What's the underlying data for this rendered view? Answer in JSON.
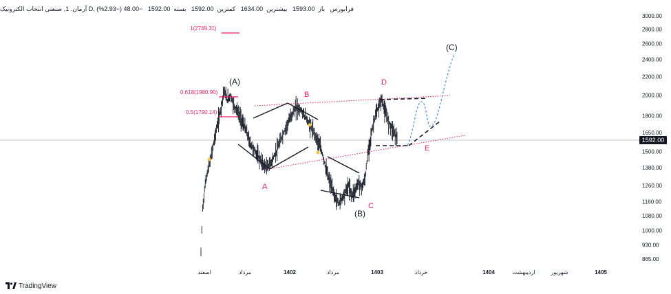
{
  "header": {
    "title": "آرمان. 1, صنعتی انتخاب الکترونیک D, فرابورس",
    "open_label": "باز",
    "open": "1593.00",
    "high_label": "بیشترین",
    "high": "1634.00",
    "low_label": "کمترین",
    "low": "1592.00",
    "close_label": "بسته",
    "close": "1592.00",
    "change": "−48.00 (−2.93%)"
  },
  "brand": {
    "name": "TradingView"
  },
  "current_price": "1592.00",
  "colors": {
    "candle": "#131722",
    "annotation_pink": "#e91e63",
    "dotted_channel": "#e91e63",
    "projection_blue": "#4a8fe7",
    "dashed_black": "#131722",
    "marker_yellow": "#f5c242",
    "grid_line": "#b2b5be"
  },
  "chart_data": {
    "type": "line",
    "title": "",
    "xlabel": "",
    "ylabel": "",
    "y_scale": "log",
    "ylim": [
      865,
      3000
    ],
    "y_ticks": [
      3000,
      2800,
      2600,
      2400,
      2200,
      2000,
      1800,
      1650,
      1500,
      1380,
      1260,
      1160,
      1080,
      1000,
      930,
      865
    ],
    "y_tick_labels": [
      "3000.00",
      "2800.00",
      "2600.00",
      "2400.00",
      "2200.00",
      "2000.00",
      "1800.00",
      "1650.00",
      "1500.00",
      "1380.00",
      "1260.00",
      "1160.00",
      "1080.00",
      "1000.00",
      "930.00",
      "865.00"
    ],
    "x_tick_labels": [
      "اسفند",
      "مرداد",
      "1402",
      "مرداد",
      "1403",
      "خرداد",
      "1404",
      "اردیبهشت",
      "شهریور",
      "1405"
    ],
    "price_line": 1592,
    "series": [
      {
        "approx_path": [
          [
            0,
            890
          ],
          [
            1,
            1120
          ],
          [
            3,
            1300
          ],
          [
            6,
            1450
          ],
          [
            9,
            1650
          ],
          [
            12,
            1850
          ],
          [
            14,
            2050
          ],
          [
            16,
            1950
          ],
          [
            18,
            2000
          ],
          [
            20,
            1900
          ],
          [
            22,
            1850
          ],
          [
            24,
            1780
          ],
          [
            26,
            1720
          ],
          [
            28,
            1650
          ],
          [
            30,
            1560
          ],
          [
            32,
            1520
          ],
          [
            34,
            1480
          ],
          [
            36,
            1440
          ],
          [
            38,
            1400
          ],
          [
            40,
            1380
          ],
          [
            43,
            1420
          ],
          [
            46,
            1500
          ],
          [
            49,
            1600
          ],
          [
            52,
            1700
          ],
          [
            55,
            1800
          ],
          [
            58,
            1880
          ],
          [
            61,
            1850
          ],
          [
            64,
            1780
          ],
          [
            67,
            1700
          ],
          [
            70,
            1620
          ],
          [
            72,
            1560
          ],
          [
            74,
            1480
          ],
          [
            76,
            1380
          ],
          [
            78,
            1300
          ],
          [
            80,
            1240
          ],
          [
            82,
            1180
          ],
          [
            84,
            1150
          ],
          [
            86,
            1180
          ],
          [
            88,
            1220
          ],
          [
            90,
            1260
          ],
          [
            92,
            1200
          ],
          [
            94,
            1230
          ],
          [
            96,
            1280
          ],
          [
            98,
            1250
          ],
          [
            100,
            1300
          ],
          [
            102,
            1500
          ],
          [
            104,
            1650
          ],
          [
            106,
            1780
          ],
          [
            108,
            1870
          ],
          [
            110,
            1960
          ],
          [
            112,
            1850
          ],
          [
            114,
            1760
          ],
          [
            116,
            1700
          ],
          [
            118,
            1650
          ],
          [
            120,
            1592
          ]
        ]
      }
    ],
    "annotations": {
      "fib_levels": [
        {
          "label": "1(2749.31)",
          "value": 2749.31
        },
        {
          "label": "0.618(1980.90)",
          "value": 1980.9
        },
        {
          "label": "0.5(1790.14)",
          "value": 1790.14
        }
      ],
      "wave_labels_black": [
        "(A)",
        "(B)",
        "(C)"
      ],
      "wave_labels_pink": [
        "A",
        "B",
        "C",
        "D",
        "E"
      ]
    }
  }
}
